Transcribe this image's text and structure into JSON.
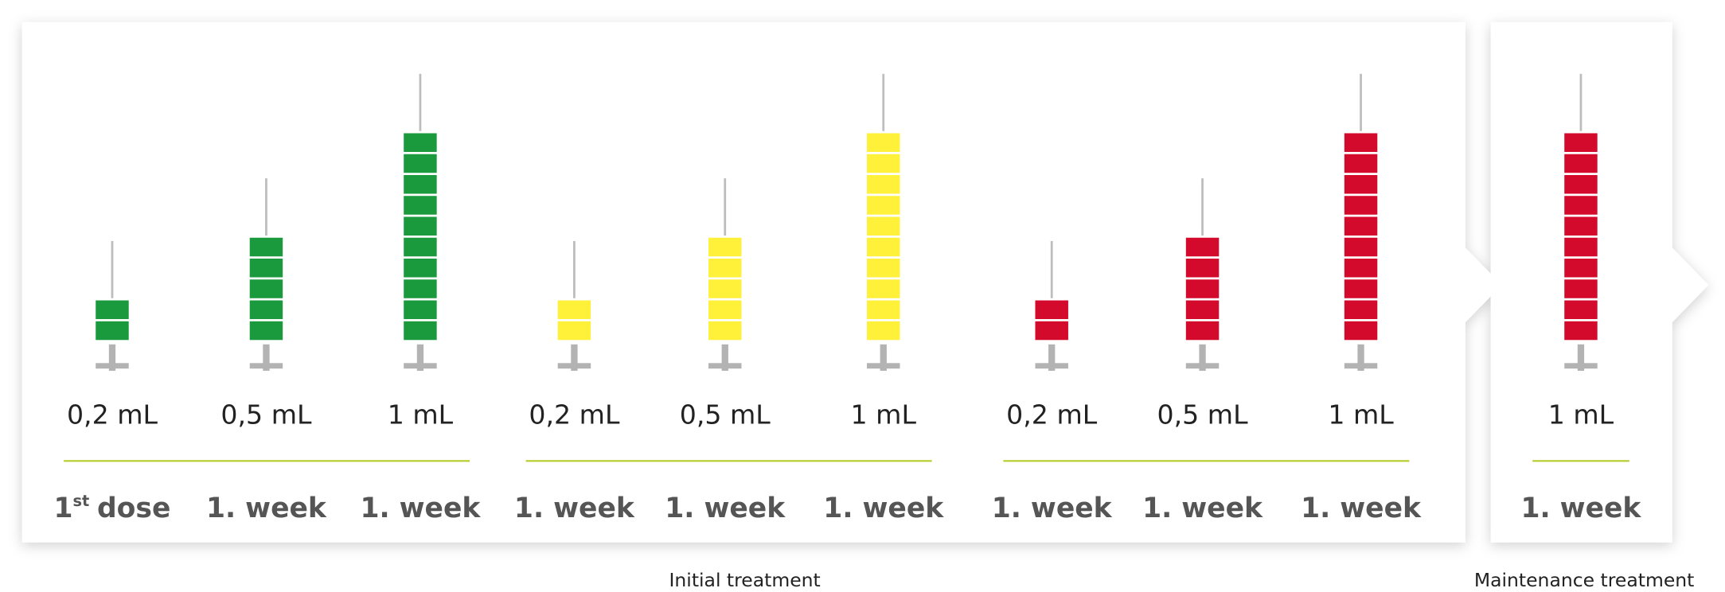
{
  "phases": [
    {
      "label": "Initial treatment",
      "groups": [
        {
          "color": "#1a9a3c",
          "items": [
            {
              "dose": "0,2 mL",
              "timing": {
                "number": "1",
                "suffix": "st",
                "word": "dose"
              }
            },
            {
              "dose": "0,5 mL",
              "timing": "1. week"
            },
            {
              "dose": "1 mL",
              "timing": "1. week"
            }
          ]
        },
        {
          "color": "#fff03a",
          "items": [
            {
              "dose": "0,2 mL",
              "timing": "1. week"
            },
            {
              "dose": "0,5 mL",
              "timing": "1. week"
            },
            {
              "dose": "1 mL",
              "timing": "1. week"
            }
          ]
        },
        {
          "color": "#d40a2c",
          "items": [
            {
              "dose": "0,2 mL",
              "timing": "1. week"
            },
            {
              "dose": "0,5 mL",
              "timing": "1. week"
            },
            {
              "dose": "1 mL",
              "timing": "1. week"
            }
          ]
        }
      ]
    },
    {
      "label": "Maintenance treatment",
      "groups": [
        {
          "color": "#d40a2c",
          "items": [
            {
              "dose": "1 mL",
              "timing": "1. week"
            }
          ]
        }
      ]
    }
  ]
}
